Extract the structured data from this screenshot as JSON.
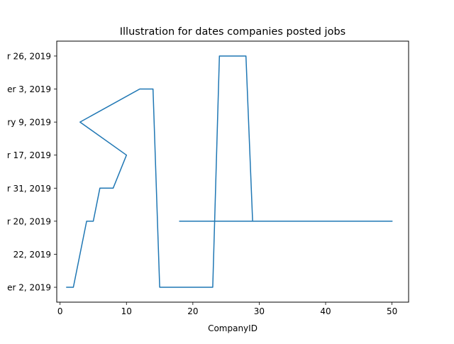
{
  "chart_data": {
    "type": "line",
    "title": "Illustration for dates companies posted jobs",
    "xlabel": "CompanyID",
    "ylabel": "",
    "xlim": [
      -0.5,
      52.5
    ],
    "ylim": [
      -0.45,
      7.45
    ],
    "x_ticks": [
      0,
      10,
      20,
      30,
      40,
      50
    ],
    "x_tick_labels": [
      "0",
      "10",
      "20",
      "30",
      "40",
      "50"
    ],
    "y_ticks": [
      0,
      1,
      2,
      3,
      4,
      5,
      6,
      7
    ],
    "y_tick_labels": [
      "er 2, 2019",
      "22, 2019",
      "r 20, 2019",
      "r 31, 2019",
      "r 17, 2019",
      "ry 9, 2019",
      "er 3, 2019",
      "r 26, 2019"
    ],
    "grid": false,
    "series": [
      {
        "color": "#1f77b4",
        "x": [
          1,
          2,
          4,
          5,
          6,
          8,
          10,
          3,
          12,
          14,
          15,
          23,
          24,
          26,
          25,
          28,
          29,
          42,
          18,
          50
        ],
        "y": [
          0,
          0,
          2,
          2,
          3,
          3,
          4,
          5,
          6,
          6,
          0,
          0,
          7,
          7,
          7,
          7,
          2,
          2,
          2,
          2
        ]
      }
    ]
  }
}
